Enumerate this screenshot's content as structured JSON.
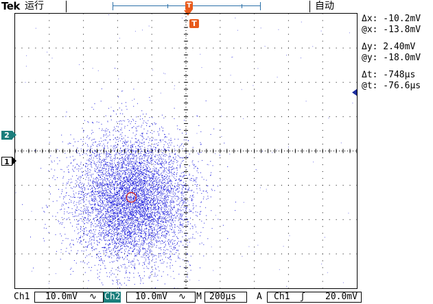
{
  "topbar": {
    "brand": "Tek",
    "run_state": "运行",
    "trigger_marker": "T",
    "trigger_mode": "自动"
  },
  "trigger_position_marker": "T",
  "channel_markers": {
    "ch2": "2",
    "ch1": "1"
  },
  "readouts": {
    "delta_x": "Δx: -10.2mV",
    "at_x": "@x: -13.8mV",
    "delta_y": "Δy:  2.40mV",
    "at_y": "@y: -18.0mV",
    "delta_t": "Δt:  -748μs",
    "at_t": "@t: -76.6μs"
  },
  "bottombar": {
    "ch1_label": "Ch1",
    "ch1_scale": "10.0mV",
    "ch1_coupling_symbol": "∿",
    "ch2_label": "Ch2",
    "ch2_scale": "10.0mV",
    "ch2_coupling_symbol": "∿",
    "timebase_label": "M",
    "timebase": "200μs",
    "acq_label": "A",
    "trigger_source": "Ch1",
    "trigger_slope_symbol": "ʃ",
    "trigger_level": "20.0mV"
  },
  "colors": {
    "trace": "#1a1adb",
    "ch2_accent": "#1b7e7c",
    "trigger_accent": "#e85a1b",
    "cursor_marker": "#cc2222"
  },
  "display": {
    "mode": "XY",
    "divisions_x": 10,
    "divisions_y": 8,
    "cloud_center_div": [
      3.4,
      5.4
    ],
    "cloud_spread_div": [
      0.85,
      0.95
    ],
    "point_count": 16000
  }
}
